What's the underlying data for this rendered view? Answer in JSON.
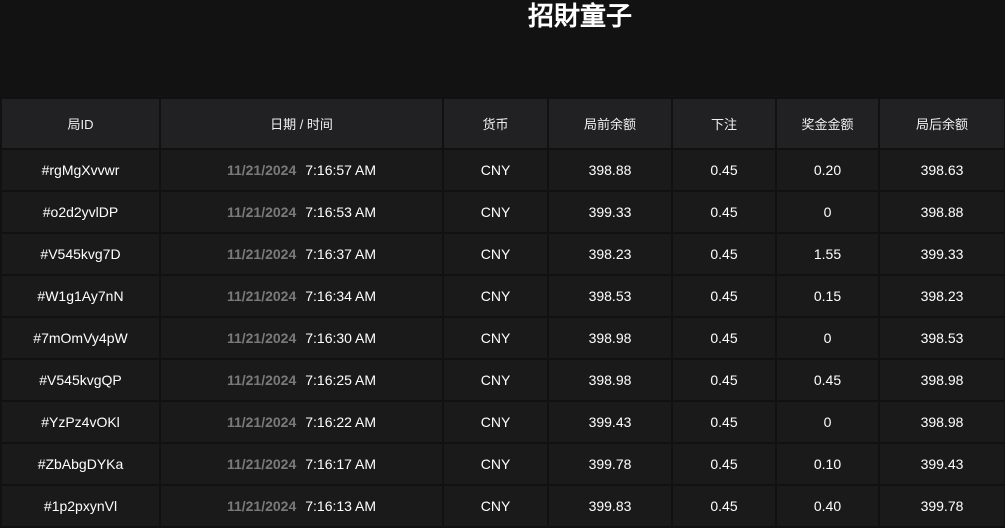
{
  "header": {
    "title": "招財童子"
  },
  "table": {
    "columns": [
      "局ID",
      "日期 / 时间",
      "货币",
      "局前余额",
      "下注",
      "奖金金额",
      "局后余额"
    ],
    "rows": [
      {
        "id": "#rgMgXvvwr",
        "date": "11/21/2024",
        "time": "7:16:57 AM",
        "currency": "CNY",
        "before": "398.88",
        "bet": "0.45",
        "win": "0.20",
        "after": "398.63"
      },
      {
        "id": "#o2d2yvlDP",
        "date": "11/21/2024",
        "time": "7:16:53 AM",
        "currency": "CNY",
        "before": "399.33",
        "bet": "0.45",
        "win": "0",
        "after": "398.88"
      },
      {
        "id": "#V545kvg7D",
        "date": "11/21/2024",
        "time": "7:16:37 AM",
        "currency": "CNY",
        "before": "398.23",
        "bet": "0.45",
        "win": "1.55",
        "after": "399.33"
      },
      {
        "id": "#W1g1Ay7nN",
        "date": "11/21/2024",
        "time": "7:16:34 AM",
        "currency": "CNY",
        "before": "398.53",
        "bet": "0.45",
        "win": "0.15",
        "after": "398.23"
      },
      {
        "id": "#7mOmVy4pW",
        "date": "11/21/2024",
        "time": "7:16:30 AM",
        "currency": "CNY",
        "before": "398.98",
        "bet": "0.45",
        "win": "0",
        "after": "398.53"
      },
      {
        "id": "#V545kvgQP",
        "date": "11/21/2024",
        "time": "7:16:25 AM",
        "currency": "CNY",
        "before": "398.98",
        "bet": "0.45",
        "win": "0.45",
        "after": "398.98"
      },
      {
        "id": "#YzPz4vOKl",
        "date": "11/21/2024",
        "time": "7:16:22 AM",
        "currency": "CNY",
        "before": "399.43",
        "bet": "0.45",
        "win": "0",
        "after": "398.98"
      },
      {
        "id": "#ZbAbgDYKa",
        "date": "11/21/2024",
        "time": "7:16:17 AM",
        "currency": "CNY",
        "before": "399.78",
        "bet": "0.45",
        "win": "0.10",
        "after": "399.43"
      },
      {
        "id": "#1p2pxynVl",
        "date": "11/21/2024",
        "time": "7:16:13 AM",
        "currency": "CNY",
        "before": "399.83",
        "bet": "0.45",
        "win": "0.40",
        "after": "399.78"
      }
    ]
  }
}
